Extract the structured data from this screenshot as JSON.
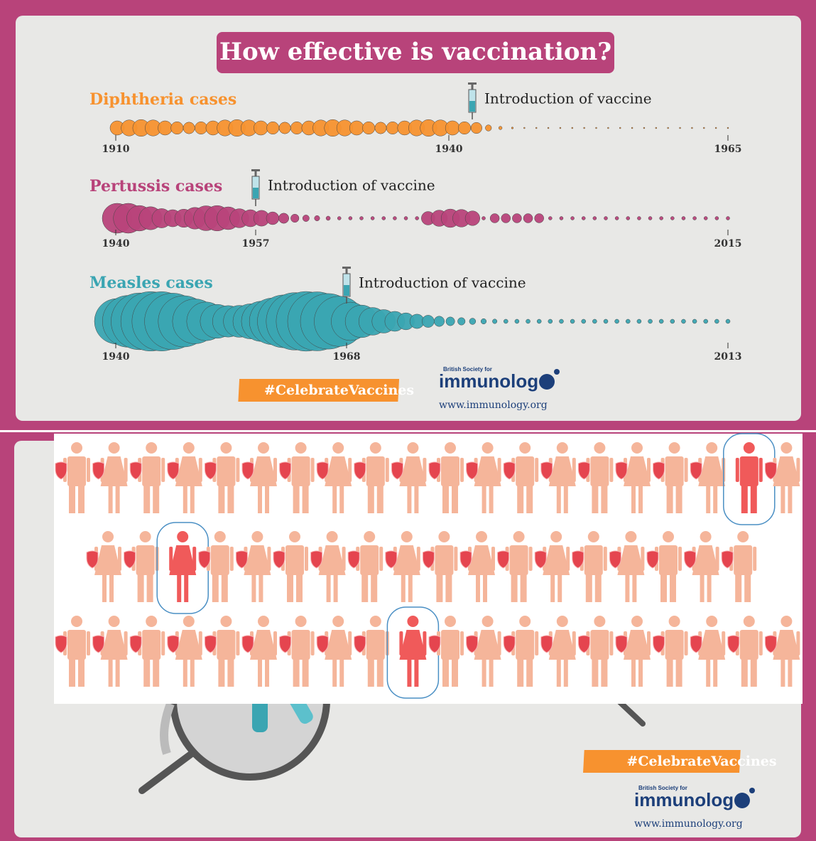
{
  "title": "How effective is vaccination?",
  "timelines": [
    {
      "label": "Diphtheria cases",
      "annotation": "Introduction of vaccine",
      "axis_labels": [
        "1910",
        "1940",
        "1965"
      ]
    },
    {
      "label": "Pertussis cases",
      "annotation": "Introduction of vaccine",
      "axis_labels": [
        "1940",
        "1957",
        "2015"
      ]
    },
    {
      "label": "Measles cases",
      "annotation": "Introduction of vaccine",
      "axis_labels": [
        "1940",
        "1968",
        "2013"
      ]
    }
  ],
  "top_panel": {
    "hashtag": "#CelebrateVaccines",
    "logo": {
      "society": "British Society for",
      "name": "immunolog",
      "url": "www.immunology.org"
    }
  },
  "bottom_panel": {
    "hashtag": "#CelebrateVaccines",
    "logo": {
      "society": "British Society for",
      "name": "immunolog",
      "url": "www.immunology.org"
    }
  }
}
